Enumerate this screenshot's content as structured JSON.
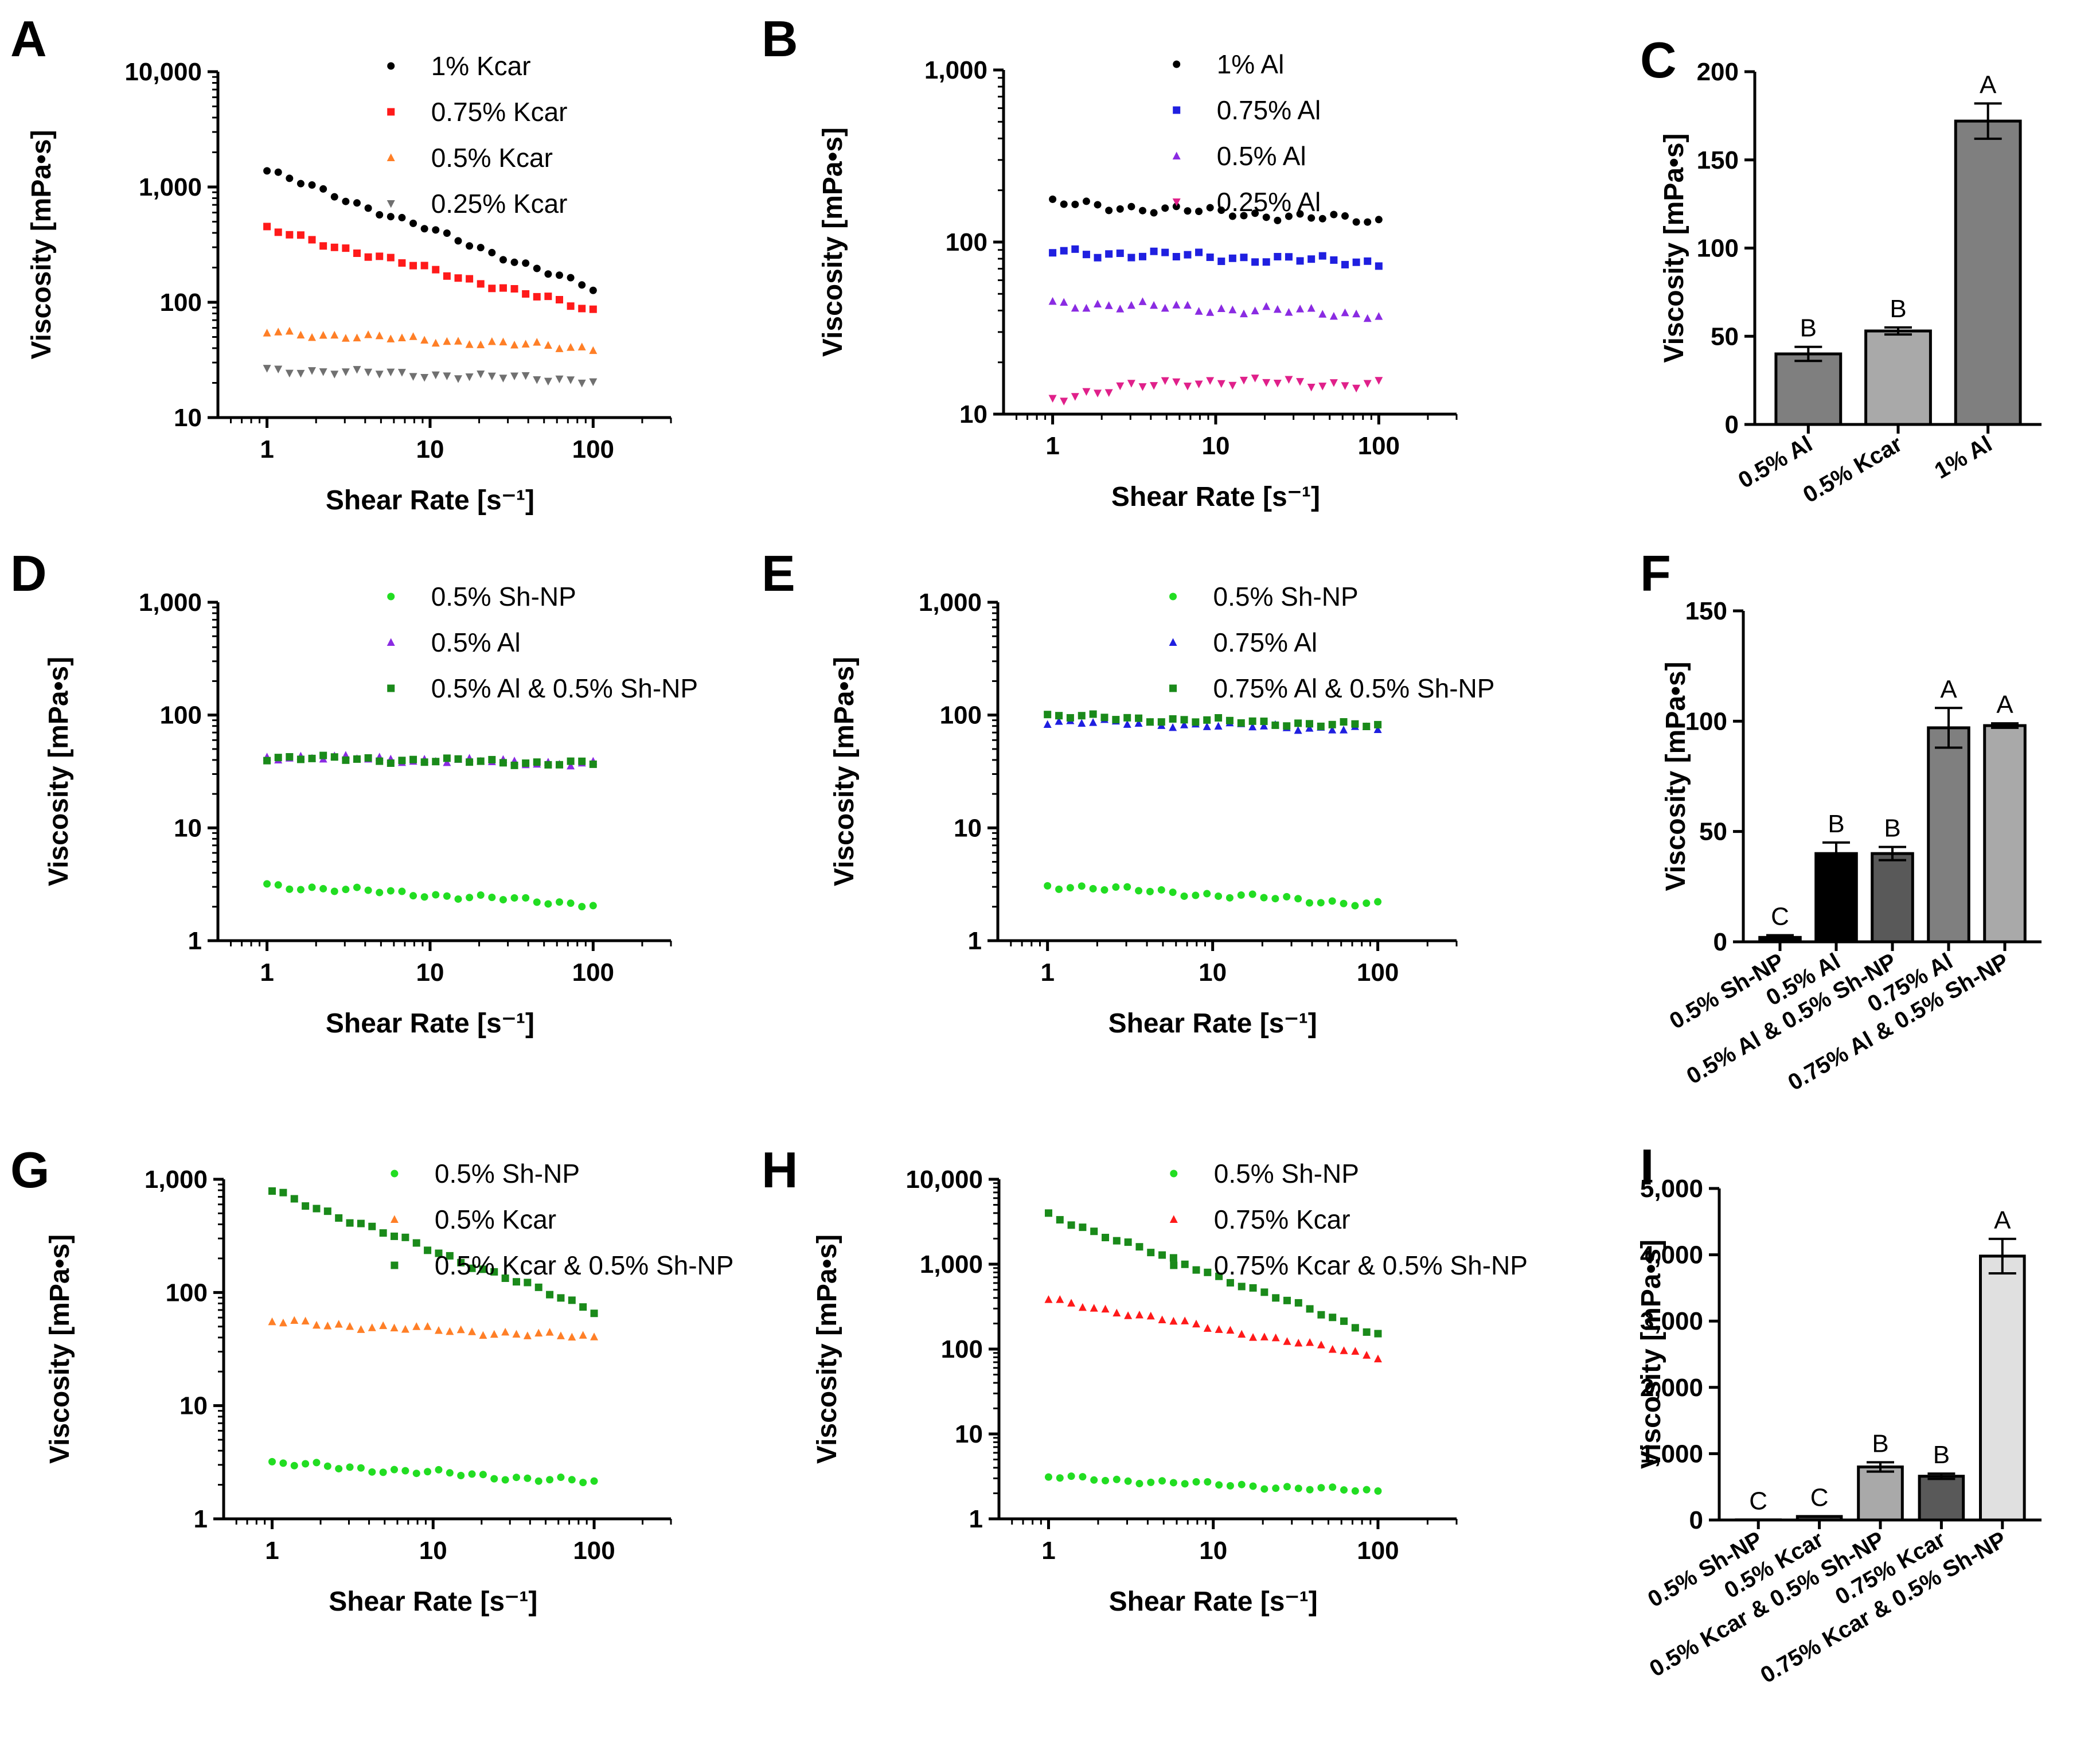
{
  "figure": {
    "chart_data": [
      {
        "panel": "A",
        "type": "scatter",
        "xscale": "log",
        "yscale": "log",
        "xlabel": "Shear Rate [s⁻¹]",
        "ylabel": "Viscosity [mPa•s]",
        "xlim": [
          0.5,
          300
        ],
        "ylim": [
          10,
          10000
        ],
        "xticks": [
          1,
          10,
          100
        ],
        "xtick_labels": [
          "1",
          "10",
          "100"
        ],
        "yticks": [
          10,
          100,
          1000,
          10000
        ],
        "ytick_labels": [
          "10",
          "100",
          "1,000",
          "10,000"
        ],
        "legend_position": "top-right",
        "series": [
          {
            "name": "1% Kcar",
            "color": "#000000",
            "marker": "circle",
            "y_start": 1380,
            "y_end": 130
          },
          {
            "name": "0.75% Kcar",
            "color": "#ff1a1a",
            "marker": "square",
            "y_start": 430,
            "y_end": 85
          },
          {
            "name": "0.5% Kcar",
            "color": "#ff7f27",
            "marker": "triangle-up",
            "y_start": 55,
            "y_end": 40
          },
          {
            "name": "0.25% Kcar",
            "color": "#707070",
            "marker": "triangle-down",
            "y_start": 26,
            "y_end": 21
          }
        ]
      },
      {
        "panel": "B",
        "type": "scatter",
        "xscale": "log",
        "yscale": "log",
        "xlabel": "Shear Rate [s⁻¹]",
        "ylabel": "Viscosity [mPa•s]",
        "xlim": [
          0.5,
          300
        ],
        "ylim": [
          10,
          1000
        ],
        "xticks": [
          1,
          10,
          100
        ],
        "xtick_labels": [
          "1",
          "10",
          "100"
        ],
        "yticks": [
          10,
          100,
          1000
        ],
        "ytick_labels": [
          "10",
          "100",
          "1,000"
        ],
        "legend_position": "top-right",
        "series": [
          {
            "name": "1% Al",
            "color": "#000000",
            "marker": "circle",
            "y_start": 168,
            "y_end": 132
          },
          {
            "name": "0.75% Al",
            "color": "#1f1fe0",
            "marker": "square",
            "y_start": 88,
            "y_end": 76
          },
          {
            "name": "0.5% Al",
            "color": "#8a2be2",
            "marker": "triangle-up",
            "y_start": 44,
            "y_end": 38
          },
          {
            "name": "0.25% Al",
            "color": "#e0208a",
            "marker": "triangle-down",
            "y_start": 12.5,
            "y_end": 14.5,
            "y_mid": 15.5
          }
        ]
      },
      {
        "panel": "C",
        "type": "bar",
        "ylabel": "Viscosity [mPa•s]",
        "ylim": [
          0,
          200
        ],
        "yticks": [
          0,
          50,
          100,
          150,
          200
        ],
        "ytick_labels": [
          "0",
          "50",
          "100",
          "150",
          "200"
        ],
        "categories": [
          "0.5% Al",
          "0.5% Kcar",
          "1% Al"
        ],
        "values": [
          40,
          53,
          172
        ],
        "errors": [
          4,
          2,
          10
        ],
        "letters": [
          "B",
          "B",
          "A"
        ],
        "colors": [
          "#7f7f7f",
          "#a9a9a9",
          "#7f7f7f"
        ]
      },
      {
        "panel": "D",
        "type": "scatter",
        "xscale": "log",
        "yscale": "log",
        "xlabel": "Shear Rate [s⁻¹]",
        "ylabel": "Viscosity [mPa•s]",
        "xlim": [
          0.5,
          300
        ],
        "ylim": [
          1,
          1000
        ],
        "xticks": [
          1,
          10,
          100
        ],
        "xtick_labels": [
          "1",
          "10",
          "100"
        ],
        "yticks": [
          1,
          10,
          100,
          1000
        ],
        "ytick_labels": [
          "1",
          "10",
          "100",
          "1,000"
        ],
        "legend_position": "top-right",
        "series": [
          {
            "name": "0.5% Sh-NP",
            "color": "#22dd22",
            "marker": "circle",
            "y_start": 3.1,
            "y_end": 2.1
          },
          {
            "name": "0.5% Al",
            "color": "#8a2be2",
            "marker": "triangle-up",
            "y_start": 43,
            "y_end": 37
          },
          {
            "name": "0.5% Al & 0.5% Sh-NP",
            "color": "#1a8a1a",
            "marker": "square",
            "y_start": 42,
            "y_end": 37
          }
        ]
      },
      {
        "panel": "E",
        "type": "scatter",
        "xscale": "log",
        "yscale": "log",
        "xlabel": "Shear Rate [s⁻¹]",
        "ylabel": "Viscosity [mPa•s]",
        "xlim": [
          0.5,
          300
        ],
        "ylim": [
          1,
          1000
        ],
        "xticks": [
          1,
          10,
          100
        ],
        "xtick_labels": [
          "1",
          "10",
          "100"
        ],
        "yticks": [
          1,
          10,
          100,
          1000
        ],
        "ytick_labels": [
          "1",
          "10",
          "100",
          "1,000"
        ],
        "legend_position": "top-right",
        "series": [
          {
            "name": "0.5% Sh-NP",
            "color": "#22dd22",
            "marker": "circle",
            "y_start": 3.1,
            "y_end": 2.1
          },
          {
            "name": "0.75% Al",
            "color": "#1f1fe0",
            "marker": "triangle-up",
            "y_start": 88,
            "y_end": 75
          },
          {
            "name": "0.75% Al & 0.5% Sh-NP",
            "color": "#1a8a1a",
            "marker": "square",
            "y_start": 98,
            "y_end": 80
          }
        ]
      },
      {
        "panel": "F",
        "type": "bar",
        "ylabel": "Viscosity [mPa•s]",
        "ylim": [
          0,
          150
        ],
        "yticks": [
          0,
          50,
          100,
          150
        ],
        "ytick_labels": [
          "0",
          "50",
          "100",
          "150"
        ],
        "categories": [
          "0.5% Sh-NP",
          "0.5% Al",
          "0.5% Al & 0.5% Sh-NP",
          "0.75% Al",
          "0.75% Al & 0.5% Sh-NP"
        ],
        "values": [
          2,
          40,
          40,
          97,
          98
        ],
        "errors": [
          1,
          5,
          3,
          9,
          1
        ],
        "letters": [
          "C",
          "B",
          "B",
          "A",
          "A"
        ],
        "colors": [
          "#000000",
          "#000000",
          "#595959",
          "#7f7f7f",
          "#a9a9a9"
        ]
      },
      {
        "panel": "G",
        "type": "scatter",
        "xscale": "log",
        "yscale": "log",
        "xlabel": "Shear Rate [s⁻¹]",
        "ylabel": "Viscosity [mPa•s]",
        "xlim": [
          0.5,
          300
        ],
        "ylim": [
          1,
          1000
        ],
        "xticks": [
          1,
          10,
          100
        ],
        "xtick_labels": [
          "1",
          "10",
          "100"
        ],
        "yticks": [
          1,
          10,
          100,
          1000
        ],
        "ytick_labels": [
          "1",
          "10",
          "100",
          "1,000"
        ],
        "legend_position": "top-right",
        "series": [
          {
            "name": "0.5% Sh-NP",
            "color": "#22dd22",
            "marker": "circle",
            "y_start": 3.1,
            "y_end": 2.1
          },
          {
            "name": "0.5% Kcar",
            "color": "#ff7f27",
            "marker": "triangle-up",
            "y_start": 55,
            "y_end": 40
          },
          {
            "name": "0.5% Kcar & 0.5% Sh-NP",
            "color": "#1a8a1a",
            "marker": "square",
            "y_start": 780,
            "y_end": 70
          }
        ]
      },
      {
        "panel": "H",
        "type": "scatter",
        "xscale": "log",
        "yscale": "log",
        "xlabel": "Shear Rate [s⁻¹]",
        "ylabel": "Viscosity [mPa•s]",
        "xlim": [
          0.5,
          300
        ],
        "ylim": [
          1,
          10000
        ],
        "xticks": [
          1,
          10,
          100
        ],
        "xtick_labels": [
          "1",
          "10",
          "100"
        ],
        "yticks": [
          1,
          10,
          100,
          1000,
          10000
        ],
        "ytick_labels": [
          "1",
          "10",
          "100",
          "1,000",
          "10,000"
        ],
        "legend_position": "top-right",
        "series": [
          {
            "name": "0.5% Sh-NP",
            "color": "#22dd22",
            "marker": "circle",
            "y_start": 3.1,
            "y_end": 2.1
          },
          {
            "name": "0.75% Kcar",
            "color": "#ff1a1a",
            "marker": "triangle-up",
            "y_start": 380,
            "y_end": 82
          },
          {
            "name": "0.75% Kcar & 0.5% Sh-NP",
            "color": "#1a8a1a",
            "marker": "square",
            "y_start": 3800,
            "y_end": 150
          }
        ]
      },
      {
        "panel": "I",
        "type": "bar",
        "ylabel": "Viscosity [mPa•s]",
        "ylim": [
          0,
          5000
        ],
        "yticks": [
          0,
          1000,
          2000,
          3000,
          4000,
          5000
        ],
        "ytick_labels": [
          "0",
          "1,000",
          "2,000",
          "3,000",
          "4,000",
          "5,000"
        ],
        "categories": [
          "0.5% Sh-NP",
          "0.5% Kcar",
          "0.5% Kcar & 0.5% Sh-NP",
          "0.75% Kcar",
          "0.75% Kcar & 0.5% Sh-NP"
        ],
        "values": [
          2,
          53,
          800,
          660,
          3980
        ],
        "errors": [
          1,
          3,
          70,
          40,
          260
        ],
        "letters": [
          "C",
          "C",
          "B",
          "B",
          "A"
        ],
        "colors": [
          "#000000",
          "#595959",
          "#a9a9a9",
          "#595959",
          "#e0e0e0"
        ]
      }
    ]
  }
}
